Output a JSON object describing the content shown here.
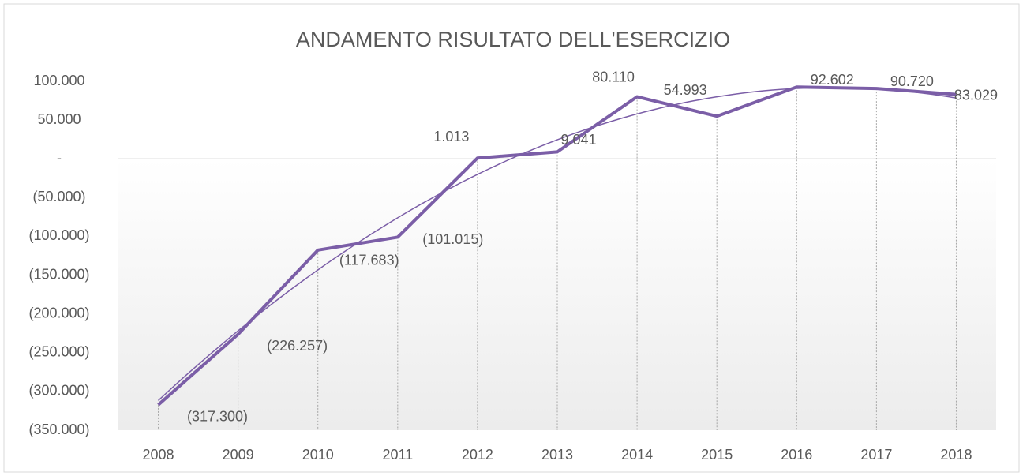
{
  "chart_data": {
    "type": "line",
    "title": "ANDAMENTO RISULTATO DELL'ESERCIZIO",
    "categories": [
      "2008",
      "2009",
      "2010",
      "2011",
      "2012",
      "2013",
      "2014",
      "2015",
      "2016",
      "2017",
      "2018"
    ],
    "series": [
      {
        "color": "#7b5ea7",
        "values": [
          -317300,
          -226257,
          -117683,
          -101015,
          1013,
          9041,
          80110,
          54993,
          92602,
          90720,
          83029
        ],
        "value_labels": [
          "(317.300)",
          "(226.257)",
          "(117.683)",
          "(101.015)",
          "1.013",
          "9.041",
          "80.110",
          "54.993",
          "92.602",
          "90.720",
          "83.029"
        ]
      }
    ],
    "ylim": [
      -350000,
      100000
    ],
    "yticks": [
      {
        "value": 100000,
        "label": "100.000"
      },
      {
        "value": 50000,
        "label": "50.000"
      },
      {
        "value": 0,
        "label": "-"
      },
      {
        "value": -50000,
        "label": "(50.000)"
      },
      {
        "value": -100000,
        "label": "(100.000)"
      },
      {
        "value": -150000,
        "label": "(150.000)"
      },
      {
        "value": -200000,
        "label": "(200.000)"
      },
      {
        "value": -250000,
        "label": "(250.000)"
      },
      {
        "value": -300000,
        "label": "(300.000)"
      },
      {
        "value": -350000,
        "label": "(350.000)"
      }
    ],
    "trendline": {
      "type": "polynomial",
      "order": 2
    },
    "drop_lines": true
  }
}
